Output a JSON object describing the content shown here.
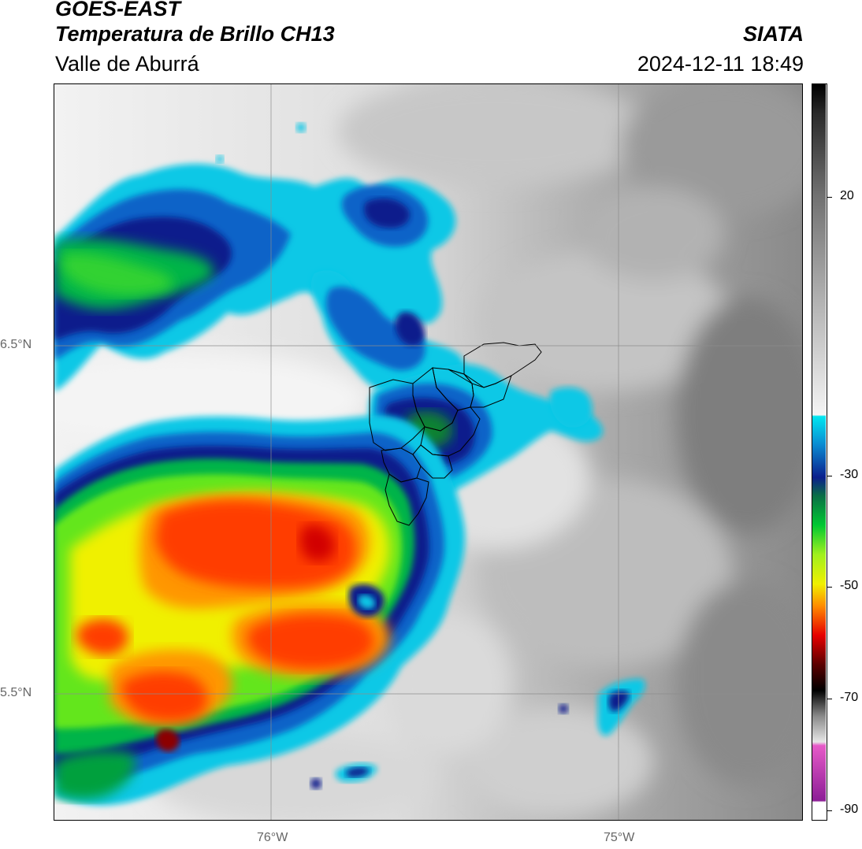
{
  "header": {
    "title1": "GOES-EAST",
    "title2": "Temperatura de Brillo CH13",
    "region": "Valle de Aburrá",
    "agency": "SIATA",
    "datetime": "2024-12-11 18:49"
  },
  "map": {
    "lat_labels": [
      "6.5°N",
      "5.5°N"
    ],
    "lon_labels": [
      "76°W",
      "75°W"
    ]
  },
  "colorbar": {
    "ticks": [
      20,
      -30,
      -50,
      -70,
      -90
    ],
    "colors": {
      "cyan": "#00c8e6",
      "blue": "#0a1e8c",
      "green": "#00c832",
      "yellow": "#f0f000",
      "red": "#e60000",
      "black": "#000000",
      "magenta": "#aa1e96",
      "white": "#ffffff"
    }
  }
}
